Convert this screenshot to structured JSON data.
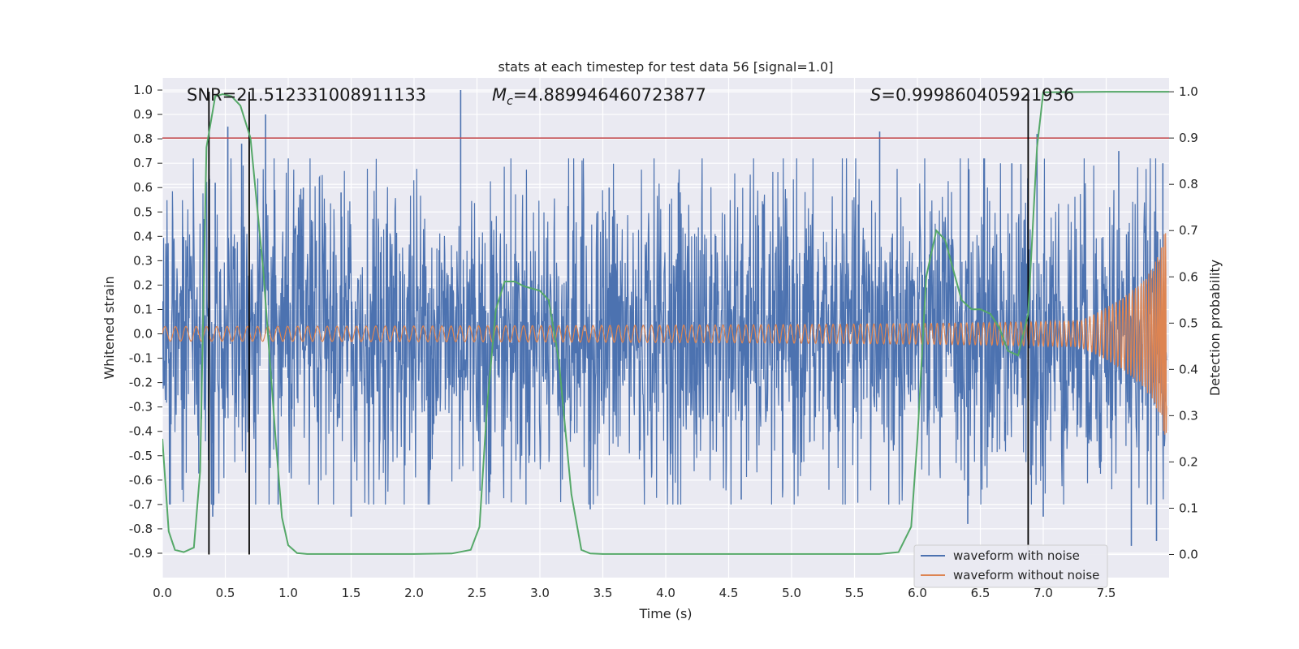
{
  "chart_data": {
    "type": "line",
    "title": "stats at each timestep for test data 56 [signal=1.0]",
    "xlabel": "Time (s)",
    "ylabel": "Whitened strain",
    "y2label": "Detection probability",
    "xlim": [
      0.0,
      8.0
    ],
    "ylim": [
      -1.0,
      1.05
    ],
    "y2lim": [
      -0.05,
      1.03
    ],
    "xticks": [
      "0.0",
      "0.5",
      "1.0",
      "1.5",
      "2.0",
      "2.5",
      "3.0",
      "3.5",
      "4.0",
      "4.5",
      "5.0",
      "5.5",
      "6.0",
      "6.5",
      "7.0",
      "7.5"
    ],
    "yticks": [
      "1.0",
      "0.9",
      "0.8",
      "0.7",
      "0.6",
      "0.5",
      "0.4",
      "0.3",
      "0.2",
      "0.1",
      "0.0",
      "-0.1",
      "-0.2",
      "-0.3",
      "-0.4",
      "-0.5",
      "-0.6",
      "-0.7",
      "-0.8",
      "-0.9"
    ],
    "y2ticks": [
      "1.0",
      "0.9",
      "0.8",
      "0.7",
      "0.6",
      "0.5",
      "0.4",
      "0.3",
      "0.2",
      "0.1",
      "0.0"
    ],
    "annotations": {
      "snr": "SNR=21.512331008911133",
      "mc_symbol": "M",
      "mc_sub": "c",
      "mc_value": "=4.889946460723877",
      "s_symbol": "S",
      "s_value": "=0.999860405921936"
    },
    "threshold_y2": 0.9,
    "threshold_color": "#c44e52",
    "vertical_lines_x": [
      0.37,
      0.69,
      6.88
    ],
    "legend": [
      {
        "label": "waveform with noise",
        "color": "#4c72b0"
      },
      {
        "label": "waveform without noise",
        "color": "#dd8452"
      }
    ],
    "legend_location": "lower-right",
    "series": [
      {
        "name": "waveform with noise",
        "color": "#4c72b0",
        "noise_amplitude": 0.32,
        "spikes": [
          [
            0.37,
            0.65
          ],
          [
            0.42,
            0.62
          ],
          [
            0.52,
            0.85
          ],
          [
            0.63,
            0.78
          ],
          [
            0.82,
            0.9
          ],
          [
            1.12,
            0.6
          ],
          [
            1.42,
            0.58
          ],
          [
            2.37,
            1.0
          ],
          [
            3.55,
            0.6
          ],
          [
            4.1,
            0.62
          ],
          [
            5.7,
            0.83
          ],
          [
            6.75,
            0.7
          ],
          [
            6.95,
            0.82
          ],
          [
            7.6,
            0.75
          ],
          [
            7.95,
            0.7
          ],
          [
            0.4,
            -0.75
          ],
          [
            0.92,
            -0.7
          ],
          [
            1.5,
            -0.75
          ],
          [
            2.6,
            -0.65
          ],
          [
            3.4,
            -0.72
          ],
          [
            4.6,
            -0.68
          ],
          [
            6.4,
            -0.78
          ],
          [
            7.0,
            -0.75
          ],
          [
            7.7,
            -0.87
          ],
          [
            7.9,
            -0.85
          ]
        ]
      },
      {
        "name": "waveform without noise",
        "color": "#dd8452",
        "chirp": {
          "f0_hz": 12,
          "f1_hz": 90,
          "amp_start": 0.03,
          "amp_end": 0.52,
          "t_merge": 8.0
        }
      },
      {
        "name": "detection probability",
        "color": "#55a868",
        "axis": "right",
        "x": [
          0.0,
          0.05,
          0.1,
          0.17,
          0.25,
          0.3,
          0.35,
          0.42,
          0.48,
          0.55,
          0.62,
          0.7,
          0.8,
          0.9,
          0.95,
          1.0,
          1.07,
          1.15,
          1.5,
          2.0,
          2.3,
          2.45,
          2.52,
          2.58,
          2.65,
          2.72,
          2.8,
          2.87,
          3.0,
          3.07,
          3.15,
          3.25,
          3.33,
          3.4,
          3.5,
          4.0,
          5.0,
          5.7,
          5.85,
          5.95,
          6.0,
          6.07,
          6.15,
          6.22,
          6.3,
          6.35,
          6.43,
          6.5,
          6.58,
          6.65,
          6.72,
          6.8,
          6.88,
          6.95,
          7.0,
          7.5,
          8.0
        ],
        "y": [
          0.25,
          0.05,
          0.01,
          0.005,
          0.015,
          0.18,
          0.88,
          0.99,
          0.995,
          0.99,
          0.97,
          0.9,
          0.62,
          0.25,
          0.08,
          0.02,
          0.003,
          0.001,
          0.001,
          0.001,
          0.002,
          0.01,
          0.06,
          0.32,
          0.53,
          0.59,
          0.59,
          0.58,
          0.57,
          0.55,
          0.42,
          0.13,
          0.01,
          0.002,
          0.001,
          0.001,
          0.001,
          0.001,
          0.005,
          0.06,
          0.25,
          0.6,
          0.7,
          0.68,
          0.6,
          0.55,
          0.53,
          0.53,
          0.52,
          0.49,
          0.44,
          0.43,
          0.52,
          0.88,
          0.999,
          1.0,
          1.0
        ]
      }
    ]
  }
}
